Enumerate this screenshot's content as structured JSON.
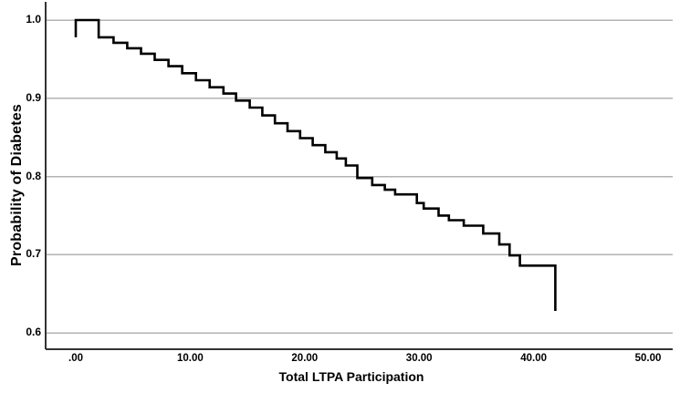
{
  "chart_data": {
    "type": "line",
    "subtype": "step-function (survival-style curve, no markers)",
    "title": "",
    "xlabel": "Total LTPA Participation",
    "ylabel": "Probability of Diabetes",
    "xlim": [
      -2.6,
      52.2
    ],
    "ylim": [
      0.578,
      1.023
    ],
    "grid": "horizontal gridlines only, at each y tick",
    "legend": "none",
    "x_ticks": [
      {
        "value": 0,
        "label": ".00"
      },
      {
        "value": 10,
        "label": "10.00"
      },
      {
        "value": 20,
        "label": "20.00"
      },
      {
        "value": 30,
        "label": "30.00"
      },
      {
        "value": 40,
        "label": "40.00"
      },
      {
        "value": 50,
        "label": "50.00"
      }
    ],
    "y_ticks": [
      {
        "value": 1.0,
        "label": "1.0"
      },
      {
        "value": 0.9,
        "label": "0.9"
      },
      {
        "value": 0.8,
        "label": "0.8"
      },
      {
        "value": 0.7,
        "label": "0.7"
      },
      {
        "value": 0.6,
        "label": "0.6"
      }
    ],
    "series": [
      {
        "name": "Probability of Diabetes vs Total LTPA Participation",
        "start": [
          0,
          0.978
        ],
        "start_rises_to": [
          0,
          1.0
        ],
        "steps_note": "curve holds previous level until each x, then drops vertically to y; ends with terminal vertical drop at final point",
        "steps": [
          [
            2.0,
            0.978
          ],
          [
            3.3,
            0.971
          ],
          [
            4.5,
            0.964
          ],
          [
            5.7,
            0.957
          ],
          [
            6.9,
            0.949
          ],
          [
            8.1,
            0.941
          ],
          [
            9.3,
            0.932
          ],
          [
            10.5,
            0.923
          ],
          [
            11.7,
            0.914
          ],
          [
            12.9,
            0.906
          ],
          [
            14.0,
            0.897
          ],
          [
            15.2,
            0.888
          ],
          [
            16.3,
            0.878
          ],
          [
            17.4,
            0.868
          ],
          [
            18.5,
            0.858
          ],
          [
            19.6,
            0.849
          ],
          [
            20.7,
            0.84
          ],
          [
            21.8,
            0.831
          ],
          [
            22.8,
            0.823
          ],
          [
            23.6,
            0.814
          ],
          [
            24.6,
            0.798
          ],
          [
            25.9,
            0.789
          ],
          [
            27.0,
            0.783
          ],
          [
            27.9,
            0.777
          ],
          [
            29.8,
            0.766
          ],
          [
            30.4,
            0.759
          ],
          [
            31.7,
            0.75
          ],
          [
            32.6,
            0.744
          ],
          [
            33.9,
            0.737
          ],
          [
            35.6,
            0.727
          ],
          [
            37.0,
            0.713
          ],
          [
            37.9,
            0.699
          ],
          [
            38.8,
            0.686
          ],
          [
            41.9,
            0.628
          ]
        ]
      }
    ],
    "colors": {
      "line": "#000000",
      "gridline": "#b3b3b3",
      "axis": "#333333",
      "text": "#000000",
      "background": "#ffffff"
    }
  }
}
